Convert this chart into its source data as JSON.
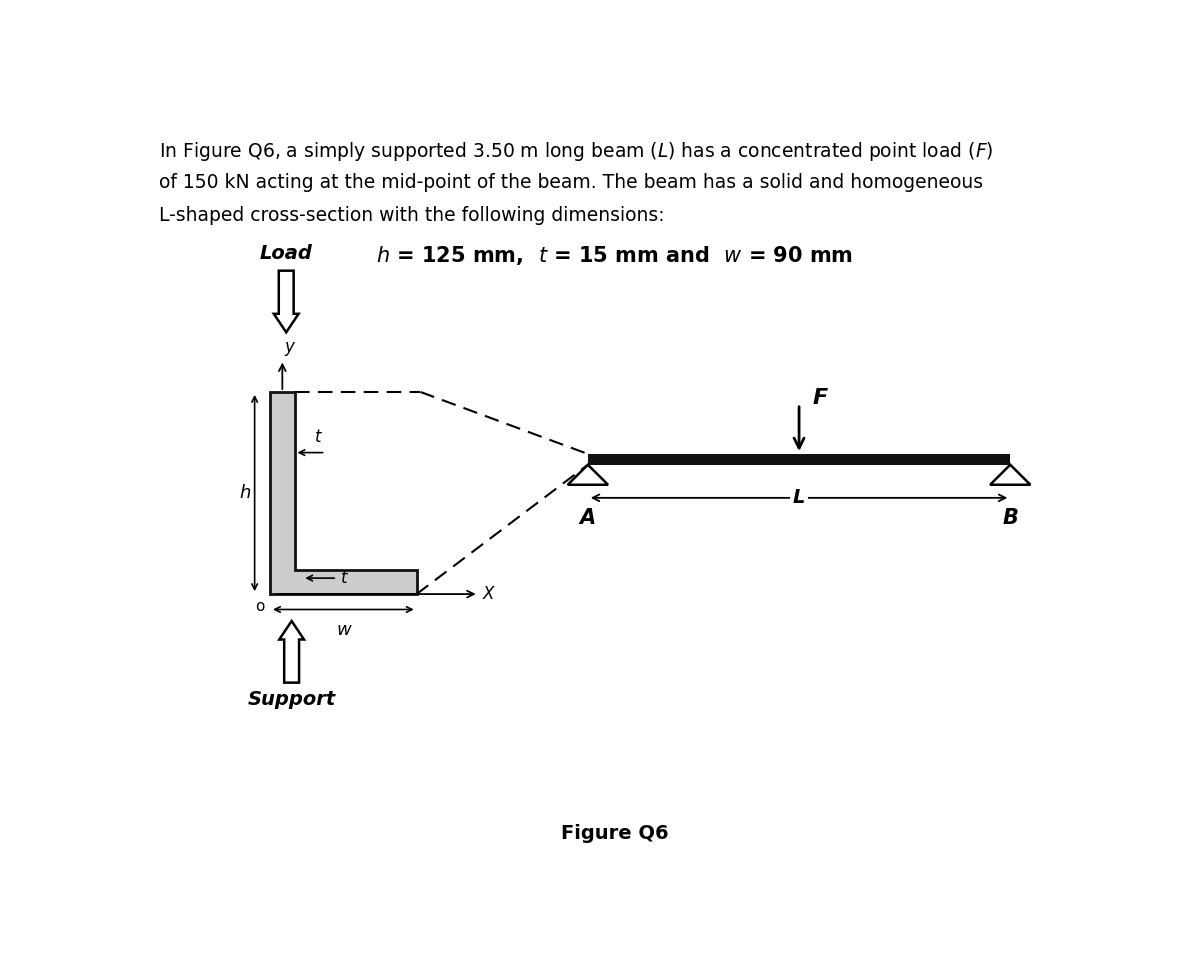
{
  "load_label": "Load",
  "support_label": "Support",
  "figure_label": "Figure Q6",
  "F_label": "F",
  "L_label": "L",
  "A_label": "A",
  "B_label": "B",
  "h_label": "h",
  "t_label": "t",
  "w_label": "w",
  "x_label": "X",
  "y_label": "y",
  "o_label": "o",
  "background_color": "#ffffff",
  "beam_color": "#111111",
  "lshape_fill": "#cccccc",
  "lshape_stroke": "#111111",
  "para_line1": "In Figure Q6, a simply supported 3.50 m long beam (",
  "para_line1_L": "L",
  "para_line1b": ") has a concentrated point load (",
  "para_line1_F": "F",
  "para_line1c": ")",
  "para_line2": "of 150 kN acting at the mid-point of the beam. The beam has a solid and homogeneous",
  "para_line3": "L-shaped cross-section with the following dimensions:"
}
